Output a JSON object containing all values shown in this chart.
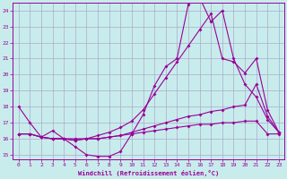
{
  "xlabel": "Windchill (Refroidissement éolien,°C)",
  "bg_color": "#c8ecec",
  "grid_color": "#aaaacc",
  "line_color": "#990099",
  "xlim": [
    -0.5,
    23.5
  ],
  "ylim": [
    14.7,
    24.5
  ],
  "yticks": [
    15,
    16,
    17,
    18,
    19,
    20,
    21,
    22,
    23,
    24
  ],
  "xticks": [
    0,
    1,
    2,
    3,
    4,
    5,
    6,
    7,
    8,
    9,
    10,
    11,
    12,
    13,
    14,
    15,
    16,
    17,
    18,
    19,
    20,
    21,
    22,
    23
  ],
  "curve1_x": [
    0,
    1,
    2,
    3,
    4,
    5,
    6,
    7,
    8,
    9,
    10,
    11,
    12,
    13,
    14,
    15,
    16,
    17,
    18,
    19,
    20,
    21,
    22,
    23
  ],
  "curve1_y": [
    18.0,
    17.0,
    16.1,
    16.0,
    16.0,
    15.5,
    15.0,
    14.9,
    14.9,
    15.2,
    16.3,
    17.5,
    19.3,
    20.5,
    21.0,
    24.4,
    24.8,
    23.3,
    24.0,
    21.0,
    19.4,
    18.6,
    17.2,
    16.4
  ],
  "curve2_x": [
    0,
    1,
    2,
    3,
    4,
    5,
    6,
    7,
    8,
    9,
    10,
    11,
    12,
    13,
    14,
    15,
    16,
    17,
    18,
    19,
    20,
    21,
    22,
    23
  ],
  "curve2_y": [
    16.3,
    16.3,
    16.1,
    16.0,
    16.0,
    15.9,
    16.0,
    16.0,
    16.1,
    16.2,
    16.4,
    16.6,
    16.8,
    17.0,
    17.2,
    17.4,
    17.5,
    17.7,
    17.8,
    18.0,
    18.1,
    19.4,
    17.4,
    16.4
  ],
  "curve3_x": [
    0,
    1,
    2,
    3,
    4,
    5,
    6,
    7,
    8,
    9,
    10,
    11,
    12,
    13,
    14,
    15,
    16,
    17,
    18,
    19,
    20,
    21,
    22,
    23
  ],
  "curve3_y": [
    16.3,
    16.3,
    16.1,
    16.0,
    16.0,
    15.9,
    16.0,
    16.0,
    16.1,
    16.2,
    16.3,
    16.4,
    16.5,
    16.6,
    16.7,
    16.8,
    16.9,
    16.9,
    17.0,
    17.0,
    17.1,
    17.1,
    16.3,
    16.3
  ],
  "curve4_x": [
    0,
    1,
    2,
    3,
    4,
    5,
    6,
    7,
    8,
    9,
    10,
    11,
    12,
    13,
    14,
    15,
    16,
    17,
    18,
    19,
    20,
    21,
    22,
    23
  ],
  "curve4_y": [
    16.3,
    16.3,
    16.1,
    16.5,
    16.0,
    16.0,
    16.0,
    16.2,
    16.4,
    16.7,
    17.1,
    17.8,
    18.8,
    19.8,
    20.8,
    21.8,
    22.8,
    23.8,
    21.0,
    20.8,
    20.1,
    21.0,
    17.8,
    16.4
  ]
}
